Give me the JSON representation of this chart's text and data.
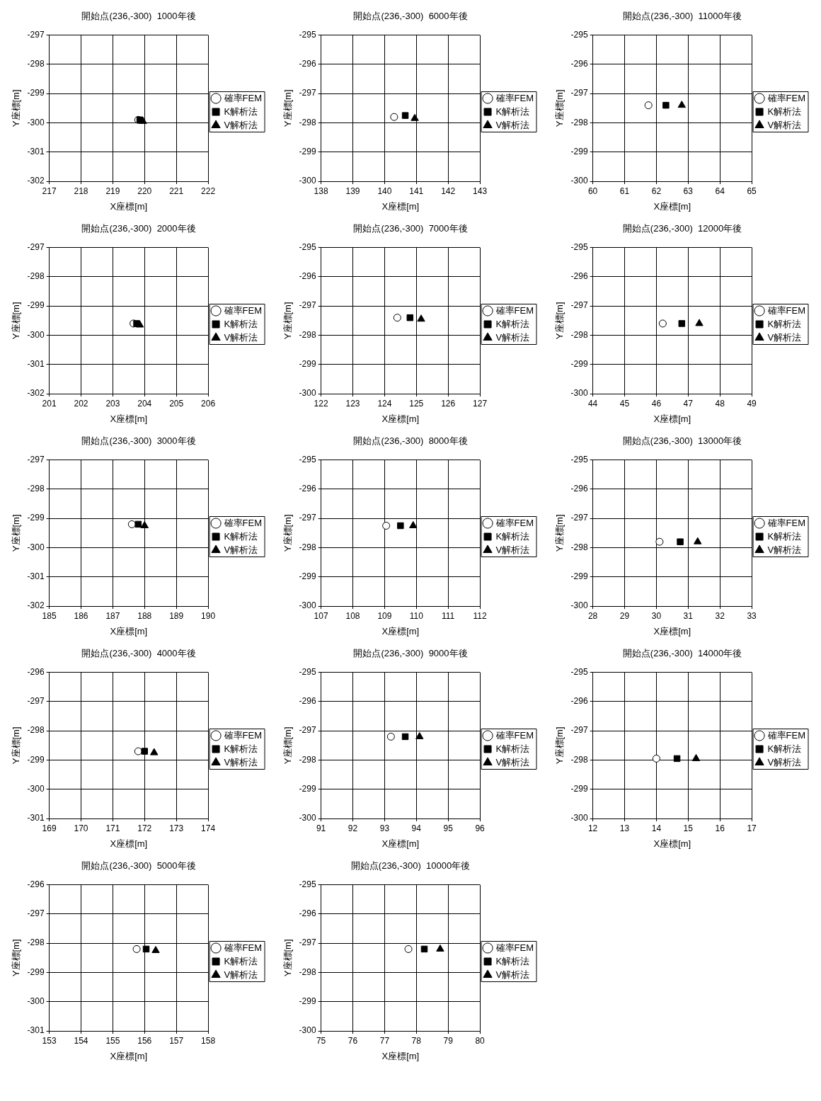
{
  "chart_data": [
    {
      "type": "scatter",
      "title": "開始点(236,-300)  1000年後",
      "xlabel": "X座標[m]",
      "ylabel": "Y座標[m]",
      "xlim": [
        217,
        222
      ],
      "xticks": [
        217,
        218,
        219,
        220,
        221,
        222
      ],
      "ylim": [
        -302,
        -297
      ],
      "yticks": [
        -302,
        -301,
        -300,
        -299,
        -298,
        -297
      ],
      "grid": true,
      "legend": "right",
      "series": [
        {
          "name": "確率FEM",
          "color": "#000000",
          "marker": "circle",
          "x": [
            219.8
          ],
          "values": [
            -299.9
          ]
        },
        {
          "name": "K解析法",
          "color": "#000000",
          "marker": "square",
          "x": [
            219.85
          ],
          "values": [
            -299.9
          ]
        },
        {
          "name": "V解析法",
          "color": "#000000",
          "marker": "triangle",
          "x": [
            219.95
          ],
          "values": [
            -299.95
          ]
        }
      ]
    },
    {
      "type": "scatter",
      "title": "開始点(236,-300)  6000年後",
      "xlabel": "X座標[m]",
      "ylabel": "Y座標[m]",
      "xlim": [
        138,
        143
      ],
      "xticks": [
        138,
        139,
        140,
        141,
        142,
        143
      ],
      "ylim": [
        -300,
        -295
      ],
      "yticks": [
        -300,
        -299,
        -298,
        -297,
        -296,
        -295
      ],
      "grid": true,
      "legend": "right",
      "series": [
        {
          "name": "確率FEM",
          "color": "#000000",
          "marker": "circle",
          "x": [
            140.3
          ],
          "values": [
            -297.8
          ]
        },
        {
          "name": "K解析法",
          "color": "#000000",
          "marker": "square",
          "x": [
            140.65
          ],
          "values": [
            -297.75
          ]
        },
        {
          "name": "V解析法",
          "color": "#000000",
          "marker": "triangle",
          "x": [
            140.95
          ],
          "values": [
            -297.85
          ]
        }
      ]
    },
    {
      "type": "scatter",
      "title": "開始点(236,-300)  11000年後",
      "xlabel": "X座標[m]",
      "ylabel": "Y座標[m]",
      "xlim": [
        60,
        65
      ],
      "xticks": [
        60,
        61,
        62,
        63,
        64,
        65
      ],
      "ylim": [
        -300,
        -295
      ],
      "yticks": [
        -300,
        -299,
        -298,
        -297,
        -296,
        -295
      ],
      "grid": true,
      "legend": "right",
      "series": [
        {
          "name": "確率FEM",
          "color": "#000000",
          "marker": "circle",
          "x": [
            61.75
          ],
          "values": [
            -297.4
          ]
        },
        {
          "name": "K解析法",
          "color": "#000000",
          "marker": "square",
          "x": [
            62.3
          ],
          "values": [
            -297.4
          ]
        },
        {
          "name": "V解析法",
          "color": "#000000",
          "marker": "triangle",
          "x": [
            62.8
          ],
          "values": [
            -297.4
          ]
        }
      ]
    },
    {
      "type": "scatter",
      "title": "開始点(236,-300)  2000年後",
      "xlabel": "X座標[m]",
      "ylabel": "Y座標[m]",
      "xlim": [
        201,
        206
      ],
      "xticks": [
        201,
        202,
        203,
        204,
        205,
        206
      ],
      "ylim": [
        -302,
        -297
      ],
      "yticks": [
        -302,
        -301,
        -300,
        -299,
        -298,
        -297
      ],
      "grid": true,
      "legend": "right",
      "series": [
        {
          "name": "確率FEM",
          "color": "#000000",
          "marker": "circle",
          "x": [
            203.65
          ],
          "values": [
            -299.6
          ]
        },
        {
          "name": "K解析法",
          "color": "#000000",
          "marker": "square",
          "x": [
            203.75
          ],
          "values": [
            -299.6
          ]
        },
        {
          "name": "V解析法",
          "color": "#000000",
          "marker": "triangle",
          "x": [
            203.85
          ],
          "values": [
            -299.65
          ]
        }
      ]
    },
    {
      "type": "scatter",
      "title": "開始点(236,-300)  7000年後",
      "xlabel": "X座標[m]",
      "ylabel": "Y座標[m]",
      "xlim": [
        122,
        127
      ],
      "xticks": [
        122,
        123,
        124,
        125,
        126,
        127
      ],
      "ylim": [
        -300,
        -295
      ],
      "yticks": [
        -300,
        -299,
        -298,
        -297,
        -296,
        -295
      ],
      "grid": true,
      "legend": "right",
      "series": [
        {
          "name": "確率FEM",
          "color": "#000000",
          "marker": "circle",
          "x": [
            124.4
          ],
          "values": [
            -297.4
          ]
        },
        {
          "name": "K解析法",
          "color": "#000000",
          "marker": "square",
          "x": [
            124.8
          ],
          "values": [
            -297.4
          ]
        },
        {
          "name": "V解析法",
          "color": "#000000",
          "marker": "triangle",
          "x": [
            125.15
          ],
          "values": [
            -297.45
          ]
        }
      ]
    },
    {
      "type": "scatter",
      "title": "開始点(236,-300)  12000年後",
      "xlabel": "X座標[m]",
      "ylabel": "Y座標[m]",
      "xlim": [
        44,
        49
      ],
      "xticks": [
        44,
        45,
        46,
        47,
        48,
        49
      ],
      "ylim": [
        -300,
        -295
      ],
      "yticks": [
        -300,
        -299,
        -298,
        -297,
        -296,
        -295
      ],
      "grid": true,
      "legend": "right",
      "series": [
        {
          "name": "確率FEM",
          "color": "#000000",
          "marker": "circle",
          "x": [
            46.2
          ],
          "values": [
            -297.6
          ]
        },
        {
          "name": "K解析法",
          "color": "#000000",
          "marker": "square",
          "x": [
            46.8
          ],
          "values": [
            -297.6
          ]
        },
        {
          "name": "V解析法",
          "color": "#000000",
          "marker": "triangle",
          "x": [
            47.35
          ],
          "values": [
            -297.6
          ]
        }
      ]
    },
    {
      "type": "scatter",
      "title": "開始点(236,-300)  3000年後",
      "xlabel": "X座標[m]",
      "ylabel": "Y座標[m]",
      "xlim": [
        185,
        190
      ],
      "xticks": [
        185,
        186,
        187,
        188,
        189,
        190
      ],
      "ylim": [
        -302,
        -297
      ],
      "yticks": [
        -302,
        -301,
        -300,
        -299,
        -298,
        -297
      ],
      "grid": true,
      "legend": "right",
      "series": [
        {
          "name": "確率FEM",
          "color": "#000000",
          "marker": "circle",
          "x": [
            187.6
          ],
          "values": [
            -299.2
          ]
        },
        {
          "name": "K解析法",
          "color": "#000000",
          "marker": "square",
          "x": [
            187.8
          ],
          "values": [
            -299.2
          ]
        },
        {
          "name": "V解析法",
          "color": "#000000",
          "marker": "triangle",
          "x": [
            188.0
          ],
          "values": [
            -299.25
          ]
        }
      ]
    },
    {
      "type": "scatter",
      "title": "開始点(236,-300)  8000年後",
      "xlabel": "X座標[m]",
      "ylabel": "Y座標[m]",
      "xlim": [
        107,
        112
      ],
      "xticks": [
        107,
        108,
        109,
        110,
        111,
        112
      ],
      "ylim": [
        -300,
        -295
      ],
      "yticks": [
        -300,
        -299,
        -298,
        -297,
        -296,
        -295
      ],
      "grid": true,
      "legend": "right",
      "series": [
        {
          "name": "確率FEM",
          "color": "#000000",
          "marker": "circle",
          "x": [
            109.05
          ],
          "values": [
            -297.25
          ]
        },
        {
          "name": "K解析法",
          "color": "#000000",
          "marker": "square",
          "x": [
            109.5
          ],
          "values": [
            -297.25
          ]
        },
        {
          "name": "V解析法",
          "color": "#000000",
          "marker": "triangle",
          "x": [
            109.9
          ],
          "values": [
            -297.25
          ]
        }
      ]
    },
    {
      "type": "scatter",
      "title": "開始点(236,-300)  13000年後",
      "xlabel": "X座標[m]",
      "ylabel": "Y座標[m]",
      "xlim": [
        28,
        33
      ],
      "xticks": [
        28,
        29,
        30,
        31,
        32,
        33
      ],
      "ylim": [
        -300,
        -295
      ],
      "yticks": [
        -300,
        -299,
        -298,
        -297,
        -296,
        -295
      ],
      "grid": true,
      "legend": "right",
      "series": [
        {
          "name": "確率FEM",
          "color": "#000000",
          "marker": "circle",
          "x": [
            30.1
          ],
          "values": [
            -297.8
          ]
        },
        {
          "name": "K解析法",
          "color": "#000000",
          "marker": "square",
          "x": [
            30.75
          ],
          "values": [
            -297.8
          ]
        },
        {
          "name": "V解析法",
          "color": "#000000",
          "marker": "triangle",
          "x": [
            31.3
          ],
          "values": [
            -297.8
          ]
        }
      ]
    },
    {
      "type": "scatter",
      "title": "開始点(236,-300)  4000年後",
      "xlabel": "X座標[m]",
      "ylabel": "Y座標[m]",
      "xlim": [
        169,
        174
      ],
      "xticks": [
        169,
        170,
        171,
        172,
        173,
        174
      ],
      "ylim": [
        -301,
        -296
      ],
      "yticks": [
        -301,
        -300,
        -299,
        -298,
        -297,
        -296
      ],
      "grid": true,
      "legend": "right",
      "series": [
        {
          "name": "確率FEM",
          "color": "#000000",
          "marker": "circle",
          "x": [
            171.8
          ],
          "values": [
            -298.7
          ]
        },
        {
          "name": "K解析法",
          "color": "#000000",
          "marker": "square",
          "x": [
            172.0
          ],
          "values": [
            -298.7
          ]
        },
        {
          "name": "V解析法",
          "color": "#000000",
          "marker": "triangle",
          "x": [
            172.3
          ],
          "values": [
            -298.75
          ]
        }
      ]
    },
    {
      "type": "scatter",
      "title": "開始点(236,-300)  9000年後",
      "xlabel": "X座標[m]",
      "ylabel": "Y座標[m]",
      "xlim": [
        91,
        96
      ],
      "xticks": [
        91,
        92,
        93,
        94,
        95,
        96
      ],
      "ylim": [
        -300,
        -295
      ],
      "yticks": [
        -300,
        -299,
        -298,
        -297,
        -296,
        -295
      ],
      "grid": true,
      "legend": "right",
      "series": [
        {
          "name": "確率FEM",
          "color": "#000000",
          "marker": "circle",
          "x": [
            93.2
          ],
          "values": [
            -297.2
          ]
        },
        {
          "name": "K解析法",
          "color": "#000000",
          "marker": "square",
          "x": [
            93.65
          ],
          "values": [
            -297.2
          ]
        },
        {
          "name": "V解析法",
          "color": "#000000",
          "marker": "triangle",
          "x": [
            94.1
          ],
          "values": [
            -297.2
          ]
        }
      ]
    },
    {
      "type": "scatter",
      "title": "開始点(236,-300)  14000年後",
      "xlabel": "X座標[m]",
      "ylabel": "Y座標[m]",
      "xlim": [
        12,
        17
      ],
      "xticks": [
        12,
        13,
        14,
        15,
        16,
        17
      ],
      "ylim": [
        -300,
        -295
      ],
      "yticks": [
        -300,
        -299,
        -298,
        -297,
        -296,
        -295
      ],
      "grid": true,
      "legend": "right",
      "series": [
        {
          "name": "確率FEM",
          "color": "#000000",
          "marker": "circle",
          "x": [
            14.0
          ],
          "values": [
            -297.95
          ]
        },
        {
          "name": "K解析法",
          "color": "#000000",
          "marker": "square",
          "x": [
            14.65
          ],
          "values": [
            -297.95
          ]
        },
        {
          "name": "V解析法",
          "color": "#000000",
          "marker": "triangle",
          "x": [
            15.25
          ],
          "values": [
            -297.95
          ]
        }
      ]
    },
    {
      "type": "scatter",
      "title": "開始点(236,-300)  5000年後",
      "xlabel": "X座標[m]",
      "ylabel": "Y座標[m]",
      "xlim": [
        153,
        158
      ],
      "xticks": [
        153,
        154,
        155,
        156,
        157,
        158
      ],
      "ylim": [
        -301,
        -296
      ],
      "yticks": [
        -301,
        -300,
        -299,
        -298,
        -297,
        -296
      ],
      "grid": true,
      "legend": "right",
      "series": [
        {
          "name": "確率FEM",
          "color": "#000000",
          "marker": "circle",
          "x": [
            155.75
          ],
          "values": [
            -298.2
          ]
        },
        {
          "name": "K解析法",
          "color": "#000000",
          "marker": "square",
          "x": [
            156.05
          ],
          "values": [
            -298.2
          ]
        },
        {
          "name": "V解析法",
          "color": "#000000",
          "marker": "triangle",
          "x": [
            156.35
          ],
          "values": [
            -298.25
          ]
        }
      ]
    },
    {
      "type": "scatter",
      "title": "開始点(236,-300)  10000年後",
      "xlabel": "X座標[m]",
      "ylabel": "Y座標[m]",
      "xlim": [
        75,
        80
      ],
      "xticks": [
        75,
        76,
        77,
        78,
        79,
        80
      ],
      "ylim": [
        -300,
        -295
      ],
      "yticks": [
        -300,
        -299,
        -298,
        -297,
        -296,
        -295
      ],
      "grid": true,
      "legend": "right",
      "series": [
        {
          "name": "確率FEM",
          "color": "#000000",
          "marker": "circle",
          "x": [
            77.75
          ],
          "values": [
            -297.2
          ]
        },
        {
          "name": "K解析法",
          "color": "#000000",
          "marker": "square",
          "x": [
            78.25
          ],
          "values": [
            -297.2
          ]
        },
        {
          "name": "V解析法",
          "color": "#000000",
          "marker": "triangle",
          "x": [
            78.75
          ],
          "values": [
            -297.2
          ]
        }
      ]
    }
  ]
}
